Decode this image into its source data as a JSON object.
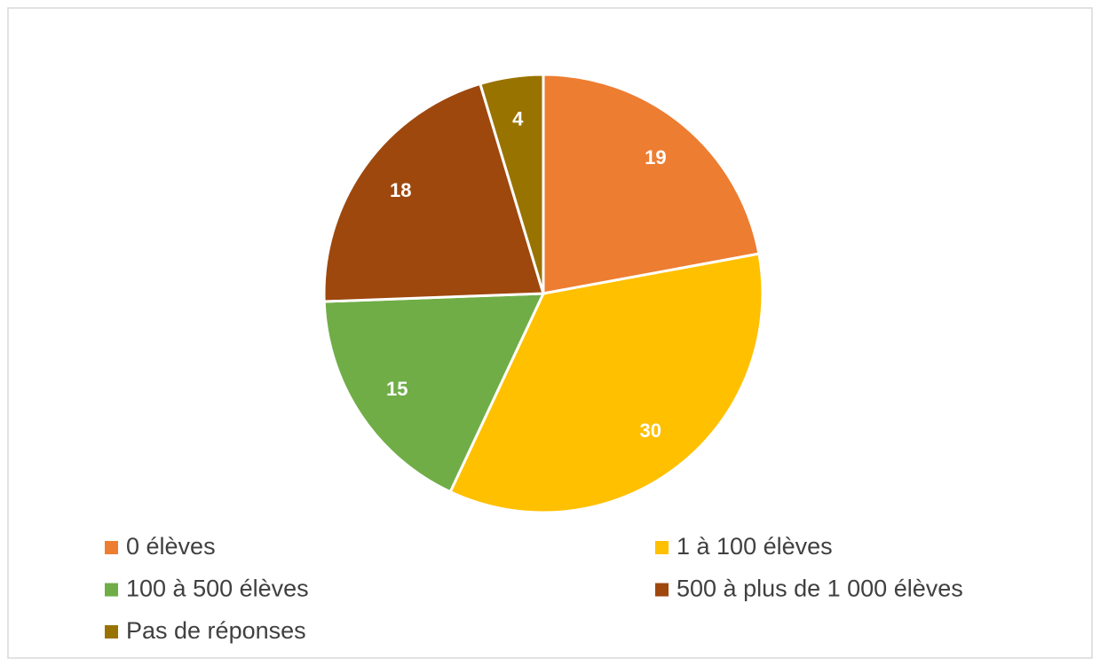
{
  "chart_data": {
    "type": "pie",
    "categories": [
      "0 élèves",
      "1 à 100 élèves",
      "100 à 500 élèves",
      "500 à plus de 1 000 élèves",
      "Pas de réponses"
    ],
    "values": [
      19,
      30,
      15,
      18,
      4
    ],
    "colors": [
      "#ED7D31",
      "#FFC000",
      "#70AD47",
      "#9E480E",
      "#997300"
    ],
    "legend": "bottom"
  }
}
